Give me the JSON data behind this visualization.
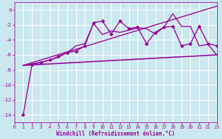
{
  "xlabel": "Windchill (Refroidissement éolien,°C)",
  "bg_color": "#cbe8f0",
  "grid_color": "#ffffff",
  "line_color": "#990099",
  "xlim": [
    0,
    23
  ],
  "ylim": [
    -15,
    1
  ],
  "yticks": [
    0,
    -2,
    -4,
    -6,
    -8,
    -10,
    -12,
    -14
  ],
  "xticks": [
    0,
    1,
    2,
    3,
    4,
    5,
    6,
    7,
    8,
    9,
    10,
    11,
    12,
    13,
    14,
    15,
    16,
    17,
    18,
    19,
    20,
    21,
    22,
    23
  ],
  "lines": [
    {
      "x": [
        1,
        2,
        3,
        4,
        5,
        6,
        7,
        8,
        9,
        10,
        11,
        12,
        13,
        14,
        15,
        16,
        17,
        18,
        19,
        20,
        21,
        22,
        23
      ],
      "y": [
        -14.0,
        -7.3,
        -7.0,
        -6.7,
        -6.2,
        -5.7,
        -5.5,
        -4.8,
        -1.7,
        -1.5,
        -3.2,
        -1.5,
        -2.5,
        -2.3,
        -4.5,
        -3.0,
        -2.3,
        -2.2,
        -4.8,
        -4.5,
        -2.2,
        -4.5,
        -4.8
      ],
      "marker": "D",
      "markersize": 2.5,
      "linewidth": 1.0,
      "zorder": 5
    },
    {
      "x": [
        1,
        23
      ],
      "y": [
        -7.4,
        0.5
      ],
      "marker": null,
      "markersize": 0,
      "linewidth": 1.0,
      "zorder": 3
    },
    {
      "x": [
        1,
        23
      ],
      "y": [
        -7.4,
        -6.0
      ],
      "marker": null,
      "markersize": 0,
      "linewidth": 1.2,
      "zorder": 2
    },
    {
      "x": [
        1,
        2,
        3,
        4,
        5,
        6,
        7,
        8,
        9,
        10,
        11,
        12,
        13,
        14,
        15,
        16,
        17,
        18,
        19,
        20,
        21,
        22,
        23
      ],
      "y": [
        -7.4,
        -7.2,
        -7.0,
        -6.7,
        -6.3,
        -5.7,
        -4.8,
        -4.5,
        -1.8,
        -3.3,
        -2.8,
        -3.0,
        -2.7,
        -2.4,
        -2.5,
        -3.2,
        -2.3,
        -0.5,
        -2.2,
        -2.2,
        -4.8,
        -4.6,
        -6.0
      ],
      "marker": null,
      "markersize": 0,
      "linewidth": 1.0,
      "zorder": 4
    }
  ]
}
